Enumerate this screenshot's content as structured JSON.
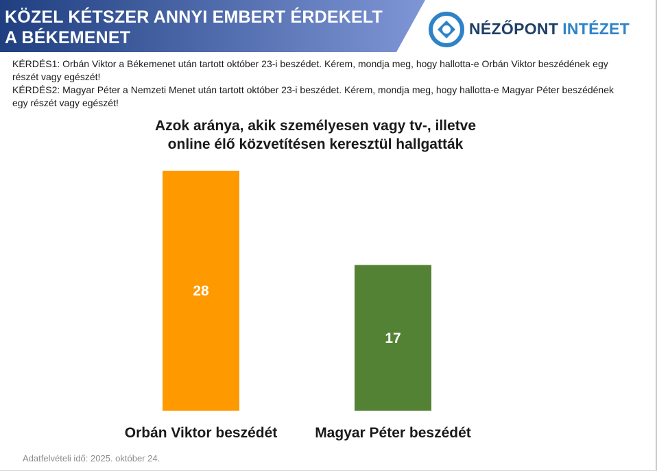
{
  "header": {
    "title": "KÖZEL KÉTSZER ANNYI EMBERT ÉRDEKELT\nA BÉKEMENET",
    "gradient_start": "#1f3f80",
    "gradient_end": "#7f96d6"
  },
  "logo": {
    "word1": "NÉZŐPONT",
    "word2": "INTÉZET",
    "dark_color": "#1f3f67",
    "accent_color": "#2e83c8",
    "icon": "nezopont-logo-icon"
  },
  "questions": {
    "q1": "KÉRDÉS1: Orbán Viktor a Békemenet után tartott október 23-i beszédet. Kérem, mondja meg, hogy hallotta-e Orbán Viktor beszédének egy részét vagy egészét!",
    "q2": "KÉRDÉS2: Magyar Péter a Nemzeti Menet után tartott október 23-i beszédet. Kérem, mondja meg, hogy hallotta-e Magyar Péter beszédének egy részét vagy egészét!"
  },
  "chart_data": {
    "type": "bar",
    "title": "Azok aránya, akik személyesen vagy tv-, illetve\nonline élő közvetítésen keresztül hallgatták",
    "categories": [
      "Orbán Viktor beszédét",
      "Magyar Péter beszédét"
    ],
    "values": [
      28,
      17
    ],
    "colors": [
      "#ff9900",
      "#548235"
    ],
    "ylim": [
      0,
      28
    ],
    "grid": false,
    "legend": "none"
  },
  "footnote": "Adatfelvételi idő: 2025. október 24."
}
